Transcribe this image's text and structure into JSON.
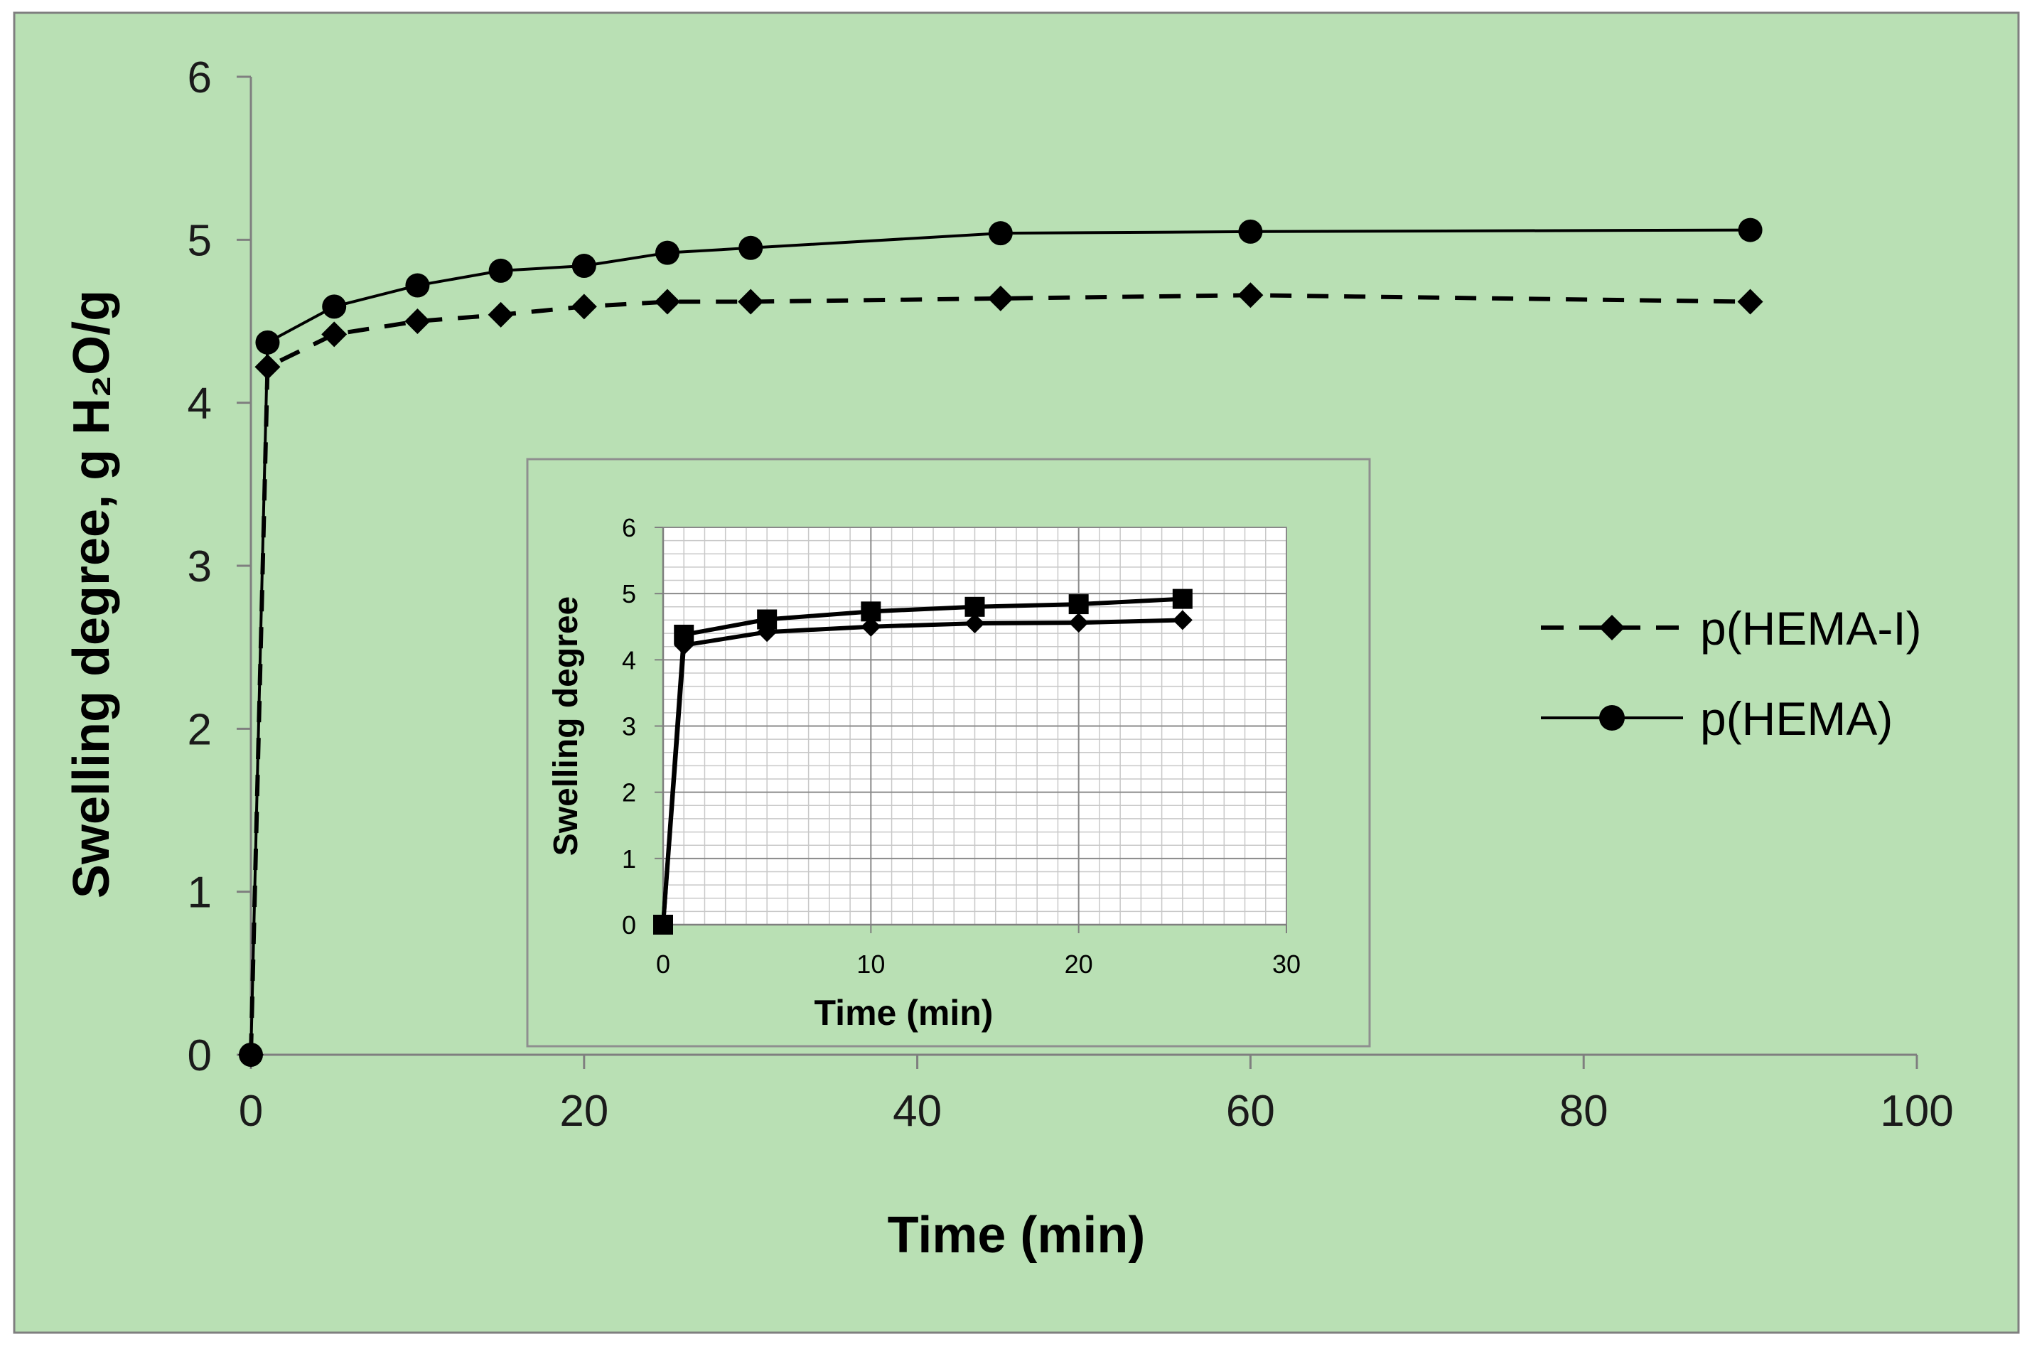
{
  "colors": {
    "panel_background": "#b9e0b4",
    "panel_border": "#7f7f7f",
    "inset_background": "#ffffff",
    "inset_grid": "#c8c8c8",
    "series_color": "#000000"
  },
  "chart_data": [
    {
      "type": "line",
      "title": "",
      "xlabel": "Time (min)",
      "ylabel": "Swelling degree, g H₂O/g",
      "xlim": [
        0,
        100
      ],
      "ylim": [
        0,
        6
      ],
      "x_ticks": [
        0,
        20,
        40,
        60,
        80,
        100
      ],
      "y_ticks": [
        0,
        1,
        2,
        3,
        4,
        5,
        6
      ],
      "grid": false,
      "legend_position": "right",
      "series": [
        {
          "name": "p(HEMA-I)",
          "line_style": "dashed",
          "marker": "diamond",
          "x": [
            0,
            1,
            5,
            10,
            15,
            20,
            25,
            30,
            45,
            60,
            90
          ],
          "values": [
            0,
            4.22,
            4.42,
            4.5,
            4.54,
            4.59,
            4.62,
            4.62,
            4.64,
            4.66,
            4.62
          ]
        },
        {
          "name": "p(HEMA)",
          "line_style": "solid",
          "marker": "circle",
          "x": [
            0,
            1,
            5,
            10,
            15,
            20,
            25,
            30,
            45,
            60,
            90
          ],
          "values": [
            0,
            4.37,
            4.59,
            4.72,
            4.81,
            4.84,
            4.92,
            4.95,
            5.04,
            5.05,
            5.06
          ]
        }
      ]
    },
    {
      "type": "line",
      "title": "",
      "xlabel": "Time (min)",
      "ylabel": "Swelling degree",
      "xlim": [
        0,
        30
      ],
      "ylim": [
        0,
        6
      ],
      "x_ticks": [
        0,
        10,
        20,
        30
      ],
      "y_ticks": [
        0,
        1,
        2,
        3,
        4,
        5,
        6
      ],
      "grid": true,
      "series": [
        {
          "name": "p(HEMA-I)",
          "line_style": "solid",
          "marker": "diamond",
          "x": [
            0,
            1,
            5,
            10,
            15,
            20,
            25
          ],
          "values": [
            0,
            4.22,
            4.42,
            4.5,
            4.55,
            4.56,
            4.6
          ]
        },
        {
          "name": "p(HEMA)",
          "line_style": "solid",
          "marker": "square",
          "x": [
            0,
            1,
            5,
            10,
            15,
            20,
            25
          ],
          "values": [
            0,
            4.38,
            4.61,
            4.73,
            4.8,
            4.84,
            4.92
          ]
        }
      ]
    }
  ]
}
